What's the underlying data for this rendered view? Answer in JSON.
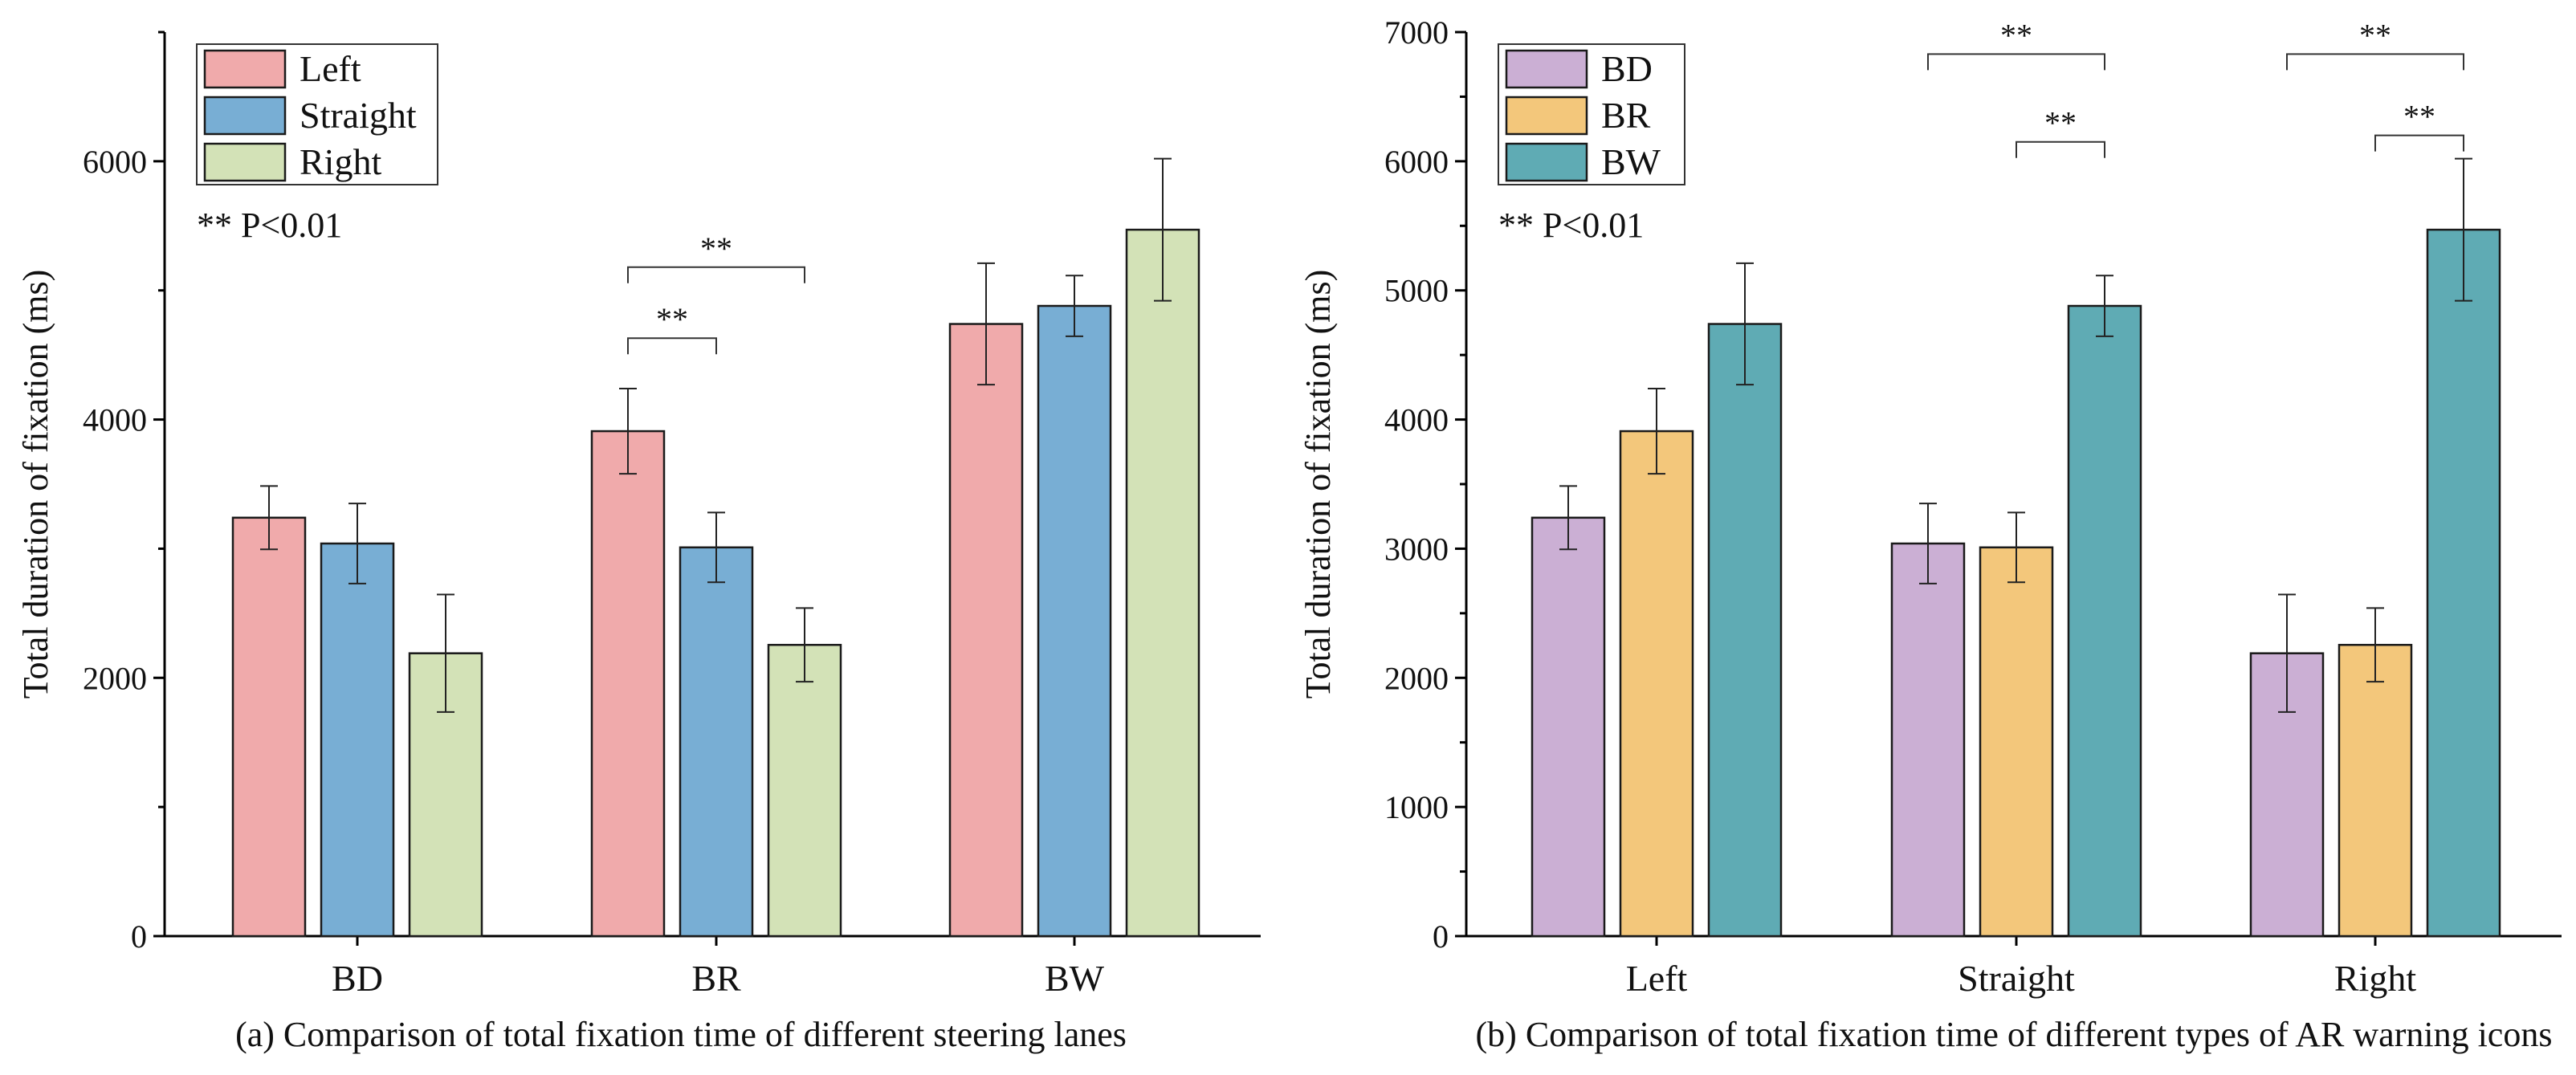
{
  "chart_data": [
    {
      "type": "bar",
      "caption": "(a) Comparison of total fixation time of different steering lanes",
      "ylabel": "Total duration of fixation (ms)",
      "xlabel": "",
      "ylim": [
        0,
        7000
      ],
      "yticks": [
        0,
        2000,
        4000,
        6000
      ],
      "categories": [
        "BD",
        "BR",
        "BW"
      ],
      "series": [
        {
          "name": "Left",
          "color": "#F0AAAB",
          "values": [
            3240,
            3910,
            4740
          ],
          "errors": [
            245,
            330,
            470
          ]
        },
        {
          "name": "Straight",
          "color": "#78AED4",
          "values": [
            3040,
            3010,
            4880
          ],
          "errors": [
            310,
            270,
            235
          ]
        },
        {
          "name": "Right",
          "color": "#D3E2B7",
          "values": [
            2190,
            2255,
            5470
          ],
          "errors": [
            455,
            285,
            550
          ]
        }
      ],
      "legend_position": "top-left",
      "note": "** P<0.01",
      "significance": [
        {
          "category": 1,
          "from": 0,
          "to": 1,
          "y": 4630,
          "label": "**"
        },
        {
          "category": 1,
          "from": 0,
          "to": 2,
          "y": 5180,
          "label": "**"
        }
      ]
    },
    {
      "type": "bar",
      "caption": "(b) Comparison of total fixation time of different types of AR warning icons",
      "ylabel": "Total duration of fixation (ms)",
      "xlabel": "",
      "ylim": [
        0,
        7000
      ],
      "yticks": [
        0,
        1000,
        2000,
        3000,
        4000,
        5000,
        6000,
        7000
      ],
      "categories": [
        "Left",
        "Straight",
        "Right"
      ],
      "series": [
        {
          "name": "BD",
          "color": "#CBAFD4",
          "values": [
            3240,
            3040,
            2190
          ],
          "errors": [
            245,
            310,
            455
          ]
        },
        {
          "name": "BR",
          "color": "#F3C77B",
          "values": [
            3910,
            3010,
            2255
          ],
          "errors": [
            330,
            270,
            285
          ]
        },
        {
          "name": "BW",
          "color": "#5FABB4",
          "values": [
            4740,
            4880,
            5470
          ],
          "errors": [
            470,
            235,
            550
          ]
        }
      ],
      "legend_position": "top-left",
      "note": "** P<0.01",
      "significance": [
        {
          "category": 1,
          "from": 1,
          "to": 2,
          "y": 6150,
          "label": "**"
        },
        {
          "category": 1,
          "from": 0,
          "to": 2,
          "y": 6830,
          "label": "**"
        },
        {
          "category": 2,
          "from": 1,
          "to": 2,
          "y": 6200,
          "label": "**"
        },
        {
          "category": 2,
          "from": 0,
          "to": 2,
          "y": 6830,
          "label": "**"
        }
      ]
    }
  ]
}
